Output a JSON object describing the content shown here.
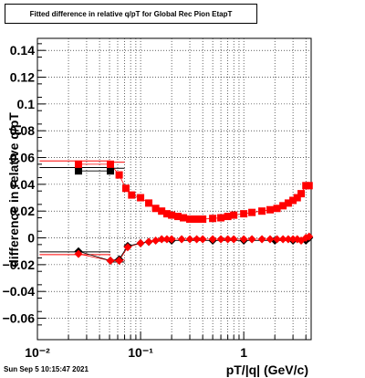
{
  "title": "Fitted difference in relative q/pT for Global Rec Pion EtapT",
  "timestamp": "Sun Sep  5 10:15:47 2021",
  "chart_data": {
    "type": "scatter",
    "title": "Fitted difference in relative q/pT for Global Rec Pion EtapT",
    "xlabel": "pT/|q| (GeV/c)",
    "ylabel": "difference in relative q/pT",
    "xscale": "log",
    "xlim": [
      0.01,
      4.5
    ],
    "ylim": [
      -0.076,
      0.149
    ],
    "x_tick_labels": [
      "10⁻²",
      "10⁻¹",
      "1"
    ],
    "y_tick_labels": [
      "−0.06",
      "−0.04",
      "−0.02",
      "0",
      "0.02",
      "0.04",
      "0.06",
      "0.08",
      "0.1",
      "0.12",
      "0.14"
    ],
    "grid": true,
    "series": [
      {
        "marker": "square",
        "color": "#ff0000",
        "x": [
          0.025,
          0.051,
          0.062,
          0.072,
          0.082,
          0.1,
          0.12,
          0.14,
          0.16,
          0.18,
          0.2,
          0.23,
          0.26,
          0.3,
          0.35,
          0.4,
          0.5,
          0.6,
          0.7,
          0.8,
          1.0,
          1.2,
          1.5,
          1.8,
          2.1,
          2.4,
          2.7,
          3.0,
          3.3,
          3.6,
          4.0,
          4.3
        ],
        "y": [
          0.055,
          0.055,
          0.047,
          0.037,
          0.032,
          0.03,
          0.026,
          0.022,
          0.02,
          0.018,
          0.017,
          0.016,
          0.015,
          0.014,
          0.014,
          0.014,
          0.0145,
          0.015,
          0.016,
          0.017,
          0.018,
          0.019,
          0.02,
          0.021,
          0.022,
          0.024,
          0.026,
          0.028,
          0.03,
          0.033,
          0.039,
          0.039
        ]
      },
      {
        "marker": "square",
        "color": "#000000",
        "x": [
          0.025,
          0.051
        ],
        "y": [
          0.05,
          0.05
        ]
      },
      {
        "marker": "diamond",
        "color": "#ff0000",
        "x": [
          0.025,
          0.051,
          0.062,
          0.075,
          0.1,
          0.12,
          0.14,
          0.16,
          0.18,
          0.2,
          0.25,
          0.3,
          0.35,
          0.4,
          0.5,
          0.6,
          0.7,
          0.8,
          1.0,
          1.2,
          1.5,
          1.8,
          2.1,
          2.4,
          2.7,
          3.0,
          3.3,
          3.6,
          4.0,
          4.3
        ],
        "y": [
          -0.012,
          -0.017,
          -0.017,
          -0.007,
          -0.004,
          -0.003,
          -0.002,
          -0.001,
          -0.001,
          -0.001,
          -0.001,
          -0.001,
          -0.001,
          -0.001,
          -0.001,
          -0.001,
          -0.001,
          -0.001,
          -0.001,
          -0.001,
          -0.001,
          -0.001,
          -0.001,
          -0.001,
          -0.001,
          -0.001,
          -0.001,
          -0.002,
          0.0,
          0.001
        ]
      },
      {
        "marker": "diamond",
        "color": "#000000",
        "x": [
          0.025,
          0.051,
          0.062,
          0.075,
          0.1,
          0.12,
          0.2,
          0.5,
          1.0,
          2.0,
          3.0,
          4.0,
          4.3
        ],
        "y": [
          -0.01,
          -0.017,
          -0.016,
          -0.006,
          -0.004,
          -0.003,
          -0.002,
          -0.002,
          -0.002,
          -0.002,
          -0.002,
          -0.002,
          0.0
        ]
      }
    ]
  }
}
